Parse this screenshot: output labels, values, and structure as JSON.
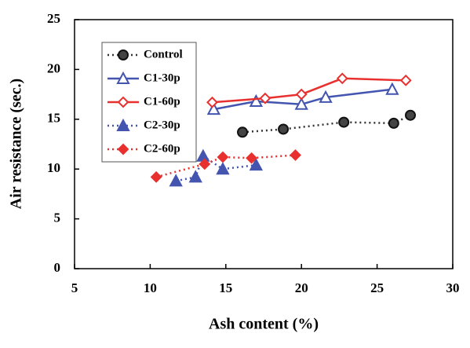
{
  "chart_data": {
    "type": "scatter",
    "x_label": "Ash content (%)",
    "y_label": "Air resistance (sec.)",
    "xlim": [
      5,
      30
    ],
    "xticks": [
      5,
      10,
      15,
      20,
      25,
      30
    ],
    "ylim": [
      0,
      25
    ],
    "yticks": [
      0,
      5,
      10,
      15,
      20,
      25
    ],
    "legend": "upper left",
    "series": [
      {
        "name": "Control",
        "color": "#333333",
        "marker": "circle",
        "filled": true,
        "line_style": "dotted",
        "x": [
          16.1,
          18.8,
          22.8,
          26.1,
          27.2
        ],
        "values": [
          13.7,
          14.0,
          14.7,
          14.6,
          15.4
        ]
      },
      {
        "name": "C1-30p",
        "color": "#4455b0",
        "marker": "triangle",
        "filled": false,
        "line_style": "solid",
        "x": [
          14.2,
          17.0,
          20.0,
          21.6,
          26.0
        ],
        "values": [
          16.0,
          16.8,
          16.5,
          17.2,
          18.0
        ]
      },
      {
        "name": "C1-60p",
        "color": "#e8312f",
        "marker": "diamond",
        "filled": false,
        "line_style": "solid",
        "x": [
          14.1,
          17.6,
          20.0,
          22.7,
          26.9
        ],
        "values": [
          16.7,
          17.1,
          17.5,
          19.1,
          18.9
        ]
      },
      {
        "name": "C2-30p",
        "color": "#4455b0",
        "marker": "triangle",
        "filled": true,
        "line_style": "dotted",
        "x": [
          11.7,
          13.0,
          13.5,
          14.8,
          17.0
        ],
        "values": [
          8.8,
          9.2,
          11.3,
          10.0,
          10.4
        ]
      },
      {
        "name": "C2-60p",
        "color": "#e8312f",
        "marker": "diamond",
        "filled": true,
        "line_style": "dotted",
        "x": [
          10.4,
          13.6,
          14.8,
          16.7,
          19.6
        ],
        "values": [
          9.2,
          10.5,
          11.2,
          11.1,
          11.4
        ]
      }
    ]
  }
}
